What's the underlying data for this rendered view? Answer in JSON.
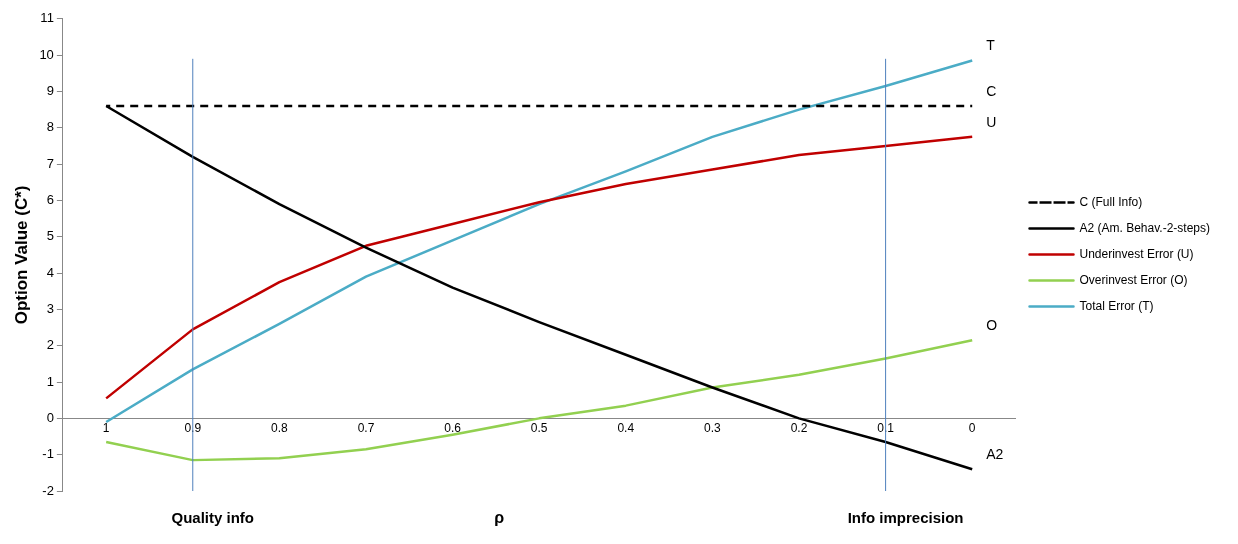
{
  "chart_data": {
    "type": "line",
    "ylabel": "Option Value (C*)",
    "xlabel": "ρ",
    "categories": [
      "1",
      "0.9",
      "0.8",
      "0.7",
      "0.6",
      "0.5",
      "0.4",
      "0.3",
      "0.2",
      "0.1",
      "0"
    ],
    "series": [
      {
        "name": "C (Full Info)",
        "color": "#000000",
        "line_style": "dashed",
        "values": [
          8.6,
          8.6,
          8.6,
          8.6,
          8.6,
          8.6,
          8.6,
          8.6,
          8.6,
          8.6,
          8.6
        ]
      },
      {
        "name": "A2 (Am. Behav.-2-steps)",
        "color": "#000000",
        "values": [
          8.6,
          7.2,
          5.9,
          4.7,
          3.6,
          2.65,
          1.75,
          0.85,
          0.0,
          -0.65,
          -1.4
        ]
      },
      {
        "name": "Underinvest Error (U)",
        "color": "#c00000",
        "values": [
          0.55,
          2.45,
          3.75,
          4.75,
          5.35,
          5.95,
          6.45,
          6.85,
          7.25,
          7.5,
          7.75
        ]
      },
      {
        "name": "Overinvest Error (O)",
        "color": "#92d050",
        "values": [
          -0.65,
          -1.15,
          -1.1,
          -0.85,
          -0.45,
          0.0,
          0.35,
          0.85,
          1.2,
          1.65,
          2.15
        ]
      },
      {
        "name": "Total Error (T)",
        "color": "#4bacc6",
        "values": [
          -0.1,
          1.35,
          2.6,
          3.9,
          4.9,
          5.9,
          6.8,
          7.75,
          8.5,
          9.15,
          9.85
        ]
      }
    ],
    "ylim": [
      -2,
      11
    ],
    "yticks": [
      -2,
      -1,
      0,
      1,
      2,
      3,
      4,
      5,
      6,
      7,
      8,
      9,
      10,
      11
    ],
    "ref_lines": [
      {
        "axis": "x",
        "value": "0.9",
        "label": "Quality info",
        "color": "#4f81bd"
      },
      {
        "axis": "x",
        "value": "0.1",
        "label": "Info imprecision",
        "color": "#4f81bd"
      }
    ],
    "annotations": [
      {
        "text": "T",
        "x": "0",
        "y": 9.85
      },
      {
        "text": "C",
        "x": "0",
        "y": 8.6
      },
      {
        "text": "U",
        "x": "0",
        "y": 7.75
      },
      {
        "text": "O",
        "x": "0",
        "y": 2.15
      },
      {
        "text": "A2",
        "x": "0",
        "y": -1.4
      }
    ],
    "legend": "right",
    "grid": false,
    "marker": "none"
  }
}
